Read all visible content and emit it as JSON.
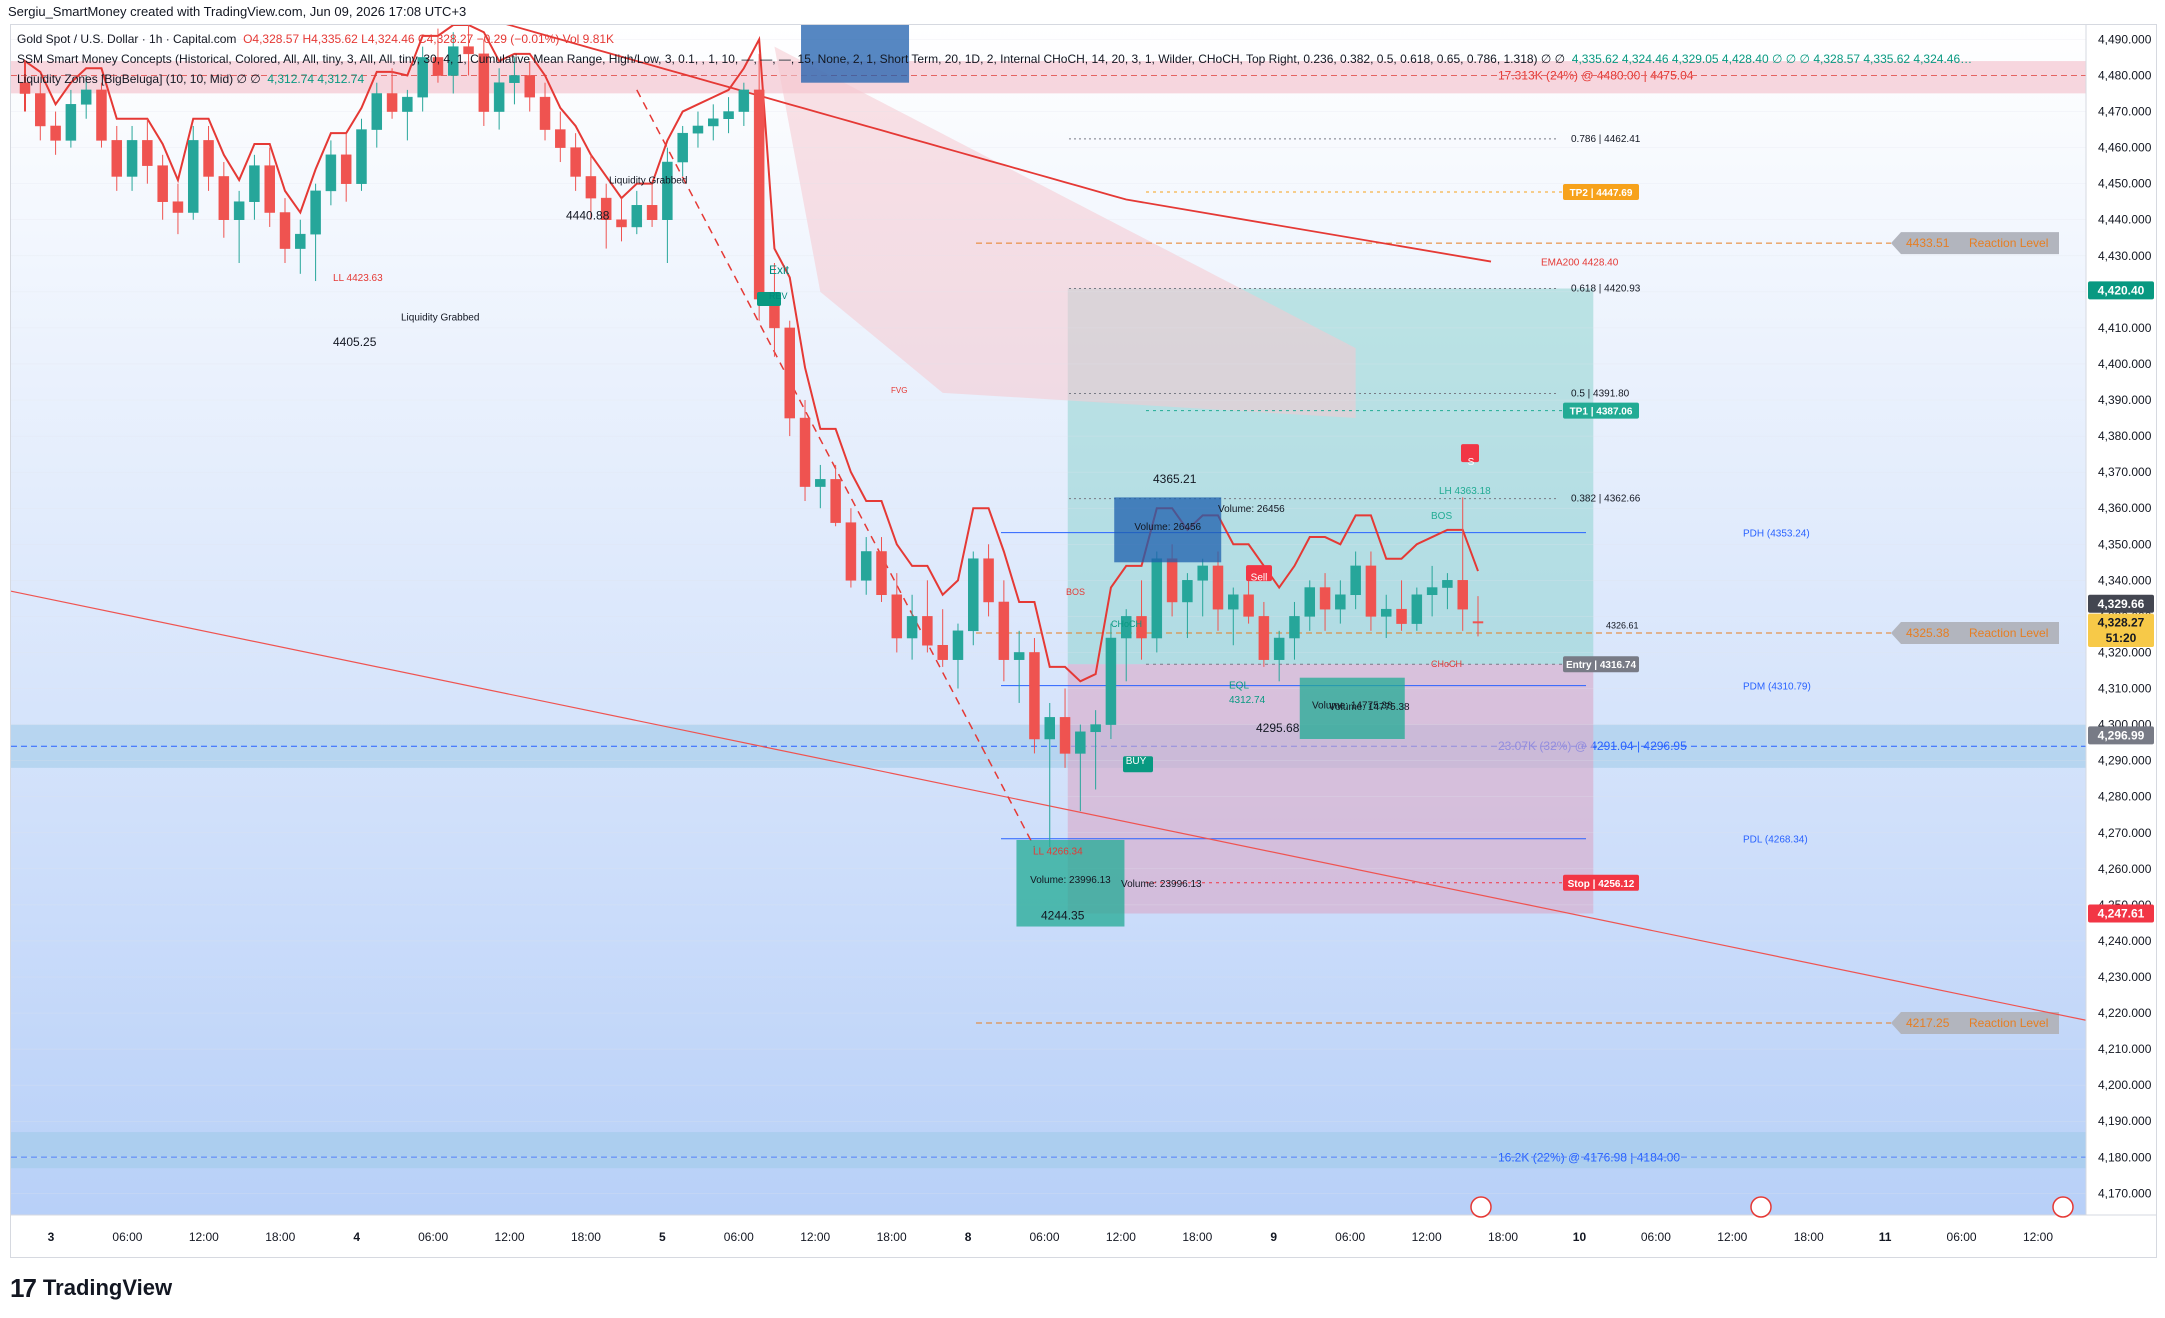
{
  "header": {
    "text": "Sergiu_SmartMoney created with TradingView.com, Jun 09, 2026 17:08 UTC+3"
  },
  "legend": {
    "symbol": "Gold Spot / U.S. Dollar · 1h · Capital.com",
    "ohlc": "O4,328.57  H4,335.62  L4,324.46  C4,328.27  −0.29 (−0.01%)  Vol 9.81K",
    "indicator1": "SSM Smart Money Concepts (Historical, Colored, All, All, tiny, 3, All, All, tiny, 30, 4, 1, Cumulative Mean Range, High/Low, 3, 0.1, , 1, 10, —, —, —, 15, None, 2, 1, Short Term, 20, 1D, 2, Internal CHoCH, 14, 20, 3, 1, Wilder, CHoCH, Top Right, 0.236, 0.382, 0.5, 0.618, 0.65, 0.786, 1.318)  ∅  ∅",
    "indicator1_values": "4,335.62  4,324.46  4,329.05  4,428.40  ∅  ∅  ∅  4,328.57  4,335.62  4,324.46…",
    "indicator2": "Liquidity Zones [BigBeluga] (10, 10, Mid)  ∅  ∅",
    "indicator2_values": "4,312.74  4,312.74"
  },
  "brand": {
    "name": "TradingView",
    "mark": "17"
  },
  "colors": {
    "bull": "#26a69a",
    "bear": "#ef5350",
    "trend_red": "#e53935",
    "trend_green": "#00e676",
    "target_zone": "#8fd3d0",
    "stop_zone": "#d8a8c8",
    "bg_top": "#ffffff",
    "bg_bottom": "#b8d0f8"
  },
  "chart_data": {
    "type": "candlestick",
    "symbol": "XAUUSD",
    "interval": "1h",
    "ylim": [
      4164,
      4494
    ],
    "y_ticks": [
      4170,
      4180,
      4190,
      4200,
      4210,
      4220,
      4230,
      4240,
      4250,
      4260,
      4270,
      4280,
      4290,
      4300,
      4310,
      4320,
      4330,
      4340,
      4350,
      4360,
      4370,
      4380,
      4390,
      4400,
      4410,
      4420,
      4430,
      4440,
      4450,
      4460,
      4470,
      4480,
      4490
    ],
    "x_ticks": [
      "3",
      "06:00",
      "12:00",
      "18:00",
      "4",
      "06:00",
      "12:00",
      "18:00",
      "5",
      "06:00",
      "12:00",
      "18:00",
      "8",
      "06:00",
      "12:00",
      "18:00",
      "9",
      "06:00",
      "12:00",
      "18:00",
      "10",
      "06:00",
      "12:00",
      "18:00",
      "11",
      "06:00",
      "12:00"
    ],
    "candles": [
      [
        4478,
        4484,
        4470,
        4475
      ],
      [
        4475,
        4478,
        4462,
        4466
      ],
      [
        4466,
        4470,
        4458,
        4462
      ],
      [
        4462,
        4476,
        4460,
        4472
      ],
      [
        4472,
        4480,
        4468,
        4476
      ],
      [
        4476,
        4478,
        4460,
        4462
      ],
      [
        4462,
        4466,
        4448,
        4452
      ],
      [
        4452,
        4466,
        4448,
        4462
      ],
      [
        4462,
        4468,
        4450,
        4455
      ],
      [
        4455,
        4458,
        4440,
        4445
      ],
      [
        4445,
        4450,
        4436,
        4442
      ],
      [
        4442,
        4466,
        4440,
        4462
      ],
      [
        4462,
        4466,
        4448,
        4452
      ],
      [
        4452,
        4456,
        4435,
        4440
      ],
      [
        4440,
        4448,
        4428,
        4445
      ],
      [
        4445,
        4458,
        4440,
        4455
      ],
      [
        4455,
        4460,
        4438,
        4442
      ],
      [
        4442,
        4446,
        4428,
        4432
      ],
      [
        4432,
        4440,
        4425,
        4436
      ],
      [
        4436,
        4450,
        4423,
        4448
      ],
      [
        4448,
        4462,
        4444,
        4458
      ],
      [
        4458,
        4464,
        4445,
        4450
      ],
      [
        4450,
        4468,
        4448,
        4465
      ],
      [
        4465,
        4478,
        4460,
        4475
      ],
      [
        4475,
        4482,
        4468,
        4470
      ],
      [
        4470,
        4476,
        4462,
        4474
      ],
      [
        4474,
        4488,
        4470,
        4485
      ],
      [
        4485,
        4493,
        4478,
        4480
      ],
      [
        4480,
        4492,
        4475,
        4488
      ],
      [
        4488,
        4494,
        4480,
        4486
      ],
      [
        4486,
        4490,
        4466,
        4470
      ],
      [
        4470,
        4482,
        4465,
        4478
      ],
      [
        4478,
        4485,
        4472,
        4480
      ],
      [
        4480,
        4484,
        4470,
        4474
      ],
      [
        4474,
        4478,
        4462,
        4465
      ],
      [
        4465,
        4470,
        4456,
        4460
      ],
      [
        4460,
        4464,
        4448,
        4452
      ],
      [
        4452,
        4458,
        4440,
        4446
      ],
      [
        4446,
        4450,
        4432,
        4440
      ],
      [
        4440,
        4446,
        4434,
        4438
      ],
      [
        4438,
        4448,
        4436,
        4444
      ],
      [
        4444,
        4450,
        4438,
        4440
      ],
      [
        4440,
        4460,
        4428,
        4456
      ],
      [
        4456,
        4466,
        4452,
        4464
      ],
      [
        4464,
        4470,
        4460,
        4466
      ],
      [
        4466,
        4472,
        4462,
        4468
      ],
      [
        4468,
        4474,
        4464,
        4470
      ],
      [
        4470,
        4478,
        4466,
        4476
      ],
      [
        4476,
        4486,
        4412,
        4418
      ],
      [
        4418,
        4428,
        4402,
        4410
      ],
      [
        4410,
        4412,
        4380,
        4385
      ],
      [
        4385,
        4390,
        4362,
        4366
      ],
      [
        4366,
        4372,
        4360,
        4368
      ],
      [
        4368,
        4372,
        4355,
        4356
      ],
      [
        4356,
        4360,
        4338,
        4340
      ],
      [
        4340,
        4352,
        4336,
        4348
      ],
      [
        4348,
        4352,
        4334,
        4336
      ],
      [
        4336,
        4342,
        4320,
        4324
      ],
      [
        4324,
        4336,
        4318,
        4330
      ],
      [
        4330,
        4340,
        4320,
        4322
      ],
      [
        4322,
        4332,
        4316,
        4318
      ],
      [
        4318,
        4328,
        4310,
        4326
      ],
      [
        4326,
        4348,
        4322,
        4346
      ],
      [
        4346,
        4350,
        4330,
        4334
      ],
      [
        4334,
        4340,
        4312,
        4318
      ],
      [
        4318,
        4326,
        4306,
        4320
      ],
      [
        4320,
        4324,
        4292,
        4296
      ],
      [
        4296,
        4306,
        4266,
        4302
      ],
      [
        4302,
        4310,
        4288,
        4292
      ],
      [
        4292,
        4300,
        4276,
        4298
      ],
      [
        4298,
        4304,
        4282,
        4300
      ],
      [
        4300,
        4328,
        4296,
        4324
      ],
      [
        4324,
        4332,
        4312,
        4330
      ],
      [
        4330,
        4340,
        4318,
        4324
      ],
      [
        4324,
        4348,
        4320,
        4346
      ],
      [
        4346,
        4350,
        4330,
        4334
      ],
      [
        4334,
        4342,
        4324,
        4340
      ],
      [
        4340,
        4346,
        4330,
        4344
      ],
      [
        4344,
        4348,
        4326,
        4332
      ],
      [
        4332,
        4338,
        4322,
        4336
      ],
      [
        4336,
        4344,
        4328,
        4330
      ],
      [
        4330,
        4334,
        4316,
        4318
      ],
      [
        4318,
        4326,
        4312,
        4324
      ],
      [
        4324,
        4334,
        4318,
        4330
      ],
      [
        4330,
        4340,
        4326,
        4338
      ],
      [
        4338,
        4342,
        4326,
        4332
      ],
      [
        4332,
        4340,
        4328,
        4336
      ],
      [
        4336,
        4348,
        4332,
        4344
      ],
      [
        4344,
        4348,
        4326,
        4330
      ],
      [
        4330,
        4336,
        4324,
        4332
      ],
      [
        4332,
        4340,
        4326,
        4328
      ],
      [
        4328,
        4338,
        4326,
        4336
      ],
      [
        4336,
        4344,
        4330,
        4338
      ],
      [
        4338,
        4342,
        4332,
        4340
      ],
      [
        4340,
        4363,
        4326,
        4332
      ],
      [
        4328.57,
        4335.62,
        4324.46,
        4328.27
      ]
    ],
    "fib_levels": [
      {
        "label": "0.786 | 4462.41",
        "value": 4462.41
      },
      {
        "label": "0.618 | 4420.93",
        "value": 4420.93
      },
      {
        "label": "0.5 | 4391.80",
        "value": 4391.8
      },
      {
        "label": "0.382 | 4362.66",
        "value": 4362.66
      }
    ],
    "levels": [
      {
        "label": "TP2 | 4447.69",
        "value": 4447.69,
        "color": "#f7a21b"
      },
      {
        "label": "TP1 | 4387.06",
        "value": 4387.06,
        "color": "#22ab94"
      },
      {
        "label": "Entry | 4316.74",
        "value": 4316.74,
        "color": "#787b86"
      },
      {
        "label": "Stop | 4256.12",
        "value": 4256.12,
        "color": "#f23645"
      },
      {
        "label": "PDH (4353.24)",
        "value": 4353.24,
        "color": "#2962ff"
      },
      {
        "label": "PDM (4310.79)",
        "value": 4310.79,
        "color": "#2962ff"
      },
      {
        "label": "PDL (4268.34)",
        "value": 4268.34,
        "color": "#2962ff"
      }
    ],
    "reaction_levels": [
      {
        "label": "4433.51",
        "suffix": "Reaction Level",
        "value": 4433.51
      },
      {
        "label": "4325.38",
        "suffix": "Reaction Level",
        "value": 4325.38
      },
      {
        "label": "4217.25",
        "suffix": "Reaction Level",
        "value": 4217.25
      }
    ],
    "liquidity_zones": [
      {
        "label": "17.313K (24%) @ 4480.00 | 4475.04",
        "value": 4480
      },
      {
        "label": "23.07K (32%) @ 4291.04 | 4296.95",
        "value": 4294
      },
      {
        "label": "16.2K (22%) @ 4176.98 | 4184.00",
        "value": 4180
      }
    ],
    "annotations": [
      {
        "text": "LL 4423.63"
      },
      {
        "text": "4405.25"
      },
      {
        "text": "Liquidity Grabbed"
      },
      {
        "text": "4440.88"
      },
      {
        "text": "Liquidity Grabbed"
      },
      {
        "text": "Exit"
      },
      {
        "text": "REV"
      },
      {
        "text": "4365.21"
      },
      {
        "text": "Volume: 26456"
      },
      {
        "text": "LH 4363.18"
      },
      {
        "text": "BOS"
      },
      {
        "text": "Sell"
      },
      {
        "text": "S"
      },
      {
        "text": "EQL"
      },
      {
        "text": "4312.74"
      },
      {
        "text": "4295.68"
      },
      {
        "text": "Volume: 14775.38"
      },
      {
        "text": "BUY"
      },
      {
        "text": "LL 4266.34"
      },
      {
        "text": "4244.35"
      },
      {
        "text": "Volume: 23996.13"
      },
      {
        "text": "CHoCH"
      },
      {
        "text": "FVG"
      },
      {
        "text": "CHoCH"
      },
      {
        "text": "BOS"
      },
      {
        "text": "4326.61"
      },
      {
        "text": "EMA200 4428.40"
      }
    ],
    "price_tags": [
      {
        "label": "4,420.40",
        "value": 4420.4,
        "color": "#089981"
      },
      {
        "label": "4,329.66",
        "value": 4333.5,
        "color": "#434651"
      },
      {
        "label": "4,328.27",
        "value": 4328.27,
        "color": "#f7c948"
      },
      {
        "label": "51:20",
        "value": 4324.0,
        "color": "#f7c948"
      },
      {
        "label": "4,296.99",
        "value": 4296.99,
        "color": "#787b86"
      },
      {
        "label": "4,247.61",
        "value": 4247.61,
        "color": "#f23645"
      }
    ]
  }
}
